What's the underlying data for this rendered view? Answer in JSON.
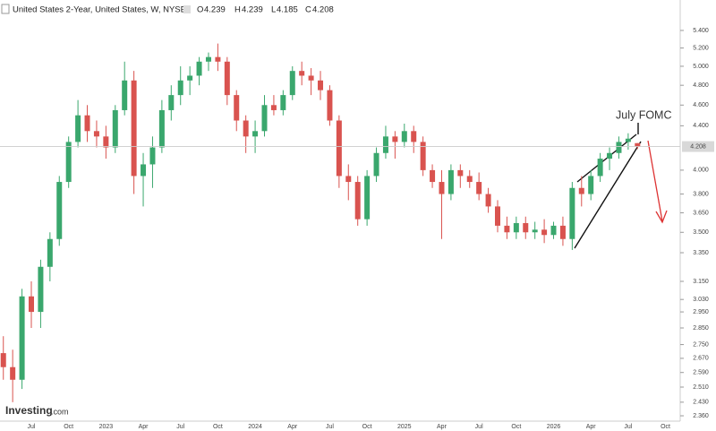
{
  "chart_data": {
    "type": "candlestick",
    "title": "United States 2-Year, United States, W, NYSE",
    "ohlc_labels": [
      "O",
      "H",
      "L",
      "C"
    ],
    "annotation": "July FOMC",
    "watermark": [
      "Investing",
      ".com"
    ],
    "up_color": "#3aa76d",
    "down_color": "#d9534f",
    "log_scale": true,
    "grid": false,
    "categories": [
      null,
      null,
      null,
      "Jul",
      null,
      null,
      null,
      "Oct",
      null,
      null,
      null,
      "2023",
      null,
      null,
      null,
      "Apr",
      null,
      null,
      null,
      "Jul",
      null,
      null,
      null,
      "Oct",
      null,
      null,
      null,
      "2024",
      null,
      null,
      null,
      "Apr",
      null,
      null,
      null,
      "Jul",
      null,
      null,
      null,
      "Oct",
      null,
      null,
      null,
      "2025",
      null,
      null,
      null,
      "Apr",
      null,
      null,
      null,
      "Jul",
      null,
      null,
      null,
      "Oct",
      null,
      null,
      null,
      "2026",
      null,
      null,
      null,
      "Apr",
      null,
      null,
      null,
      "Jul",
      null,
      null,
      null,
      "Oct",
      null
    ],
    "open": [
      2.7,
      2.62,
      2.55,
      3.05,
      2.95,
      3.25,
      3.45,
      3.9,
      4.25,
      4.5,
      4.35,
      4.3,
      4.2,
      4.55,
      4.85,
      3.95,
      4.05,
      4.2,
      4.55,
      4.7,
      4.85,
      4.9,
      5.05,
      5.1,
      5.05,
      4.7,
      4.45,
      4.3,
      4.35,
      4.6,
      4.55,
      4.7,
      4.95,
      4.9,
      4.85,
      4.75,
      4.45,
      3.95,
      3.9,
      3.6,
      3.95,
      4.15,
      4.3,
      4.25,
      4.35,
      4.25,
      4.0,
      3.9,
      3.8,
      4.0,
      3.95,
      3.9,
      3.8,
      3.7,
      3.55,
      3.5,
      3.57,
      3.5,
      3.52,
      3.48,
      3.55,
      3.45,
      3.85,
      3.8,
      3.95,
      4.1,
      4.15,
      4.25,
      4.239,
      null,
      null,
      null,
      null
    ],
    "high": [
      2.8,
      2.72,
      3.1,
      3.15,
      3.3,
      3.5,
      3.95,
      4.3,
      4.65,
      4.6,
      4.45,
      4.4,
      4.6,
      5.05,
      4.95,
      4.15,
      4.3,
      4.65,
      4.8,
      5.0,
      5.0,
      5.1,
      5.15,
      5.25,
      5.1,
      4.75,
      4.5,
      4.45,
      4.7,
      4.7,
      4.75,
      5.0,
      5.05,
      4.98,
      4.95,
      4.8,
      4.5,
      4.05,
      3.95,
      4.0,
      4.2,
      4.4,
      4.35,
      4.42,
      4.4,
      4.3,
      4.05,
      4.0,
      4.05,
      4.05,
      4.0,
      3.98,
      3.85,
      3.75,
      3.62,
      3.62,
      3.62,
      3.58,
      3.6,
      3.58,
      3.62,
      3.9,
      3.95,
      4.0,
      4.15,
      4.2,
      4.3,
      4.33,
      4.239,
      null,
      null,
      null,
      null
    ],
    "low": [
      2.55,
      2.43,
      2.5,
      2.85,
      2.85,
      3.15,
      3.4,
      3.85,
      4.2,
      4.25,
      4.2,
      4.1,
      4.15,
      4.5,
      3.8,
      3.7,
      3.85,
      4.15,
      4.45,
      4.6,
      4.7,
      4.8,
      4.95,
      4.95,
      4.6,
      4.35,
      4.15,
      4.15,
      4.3,
      4.5,
      4.5,
      4.65,
      4.8,
      4.7,
      4.65,
      4.4,
      3.85,
      3.75,
      3.55,
      3.55,
      3.9,
      4.1,
      4.1,
      4.2,
      4.15,
      3.95,
      3.85,
      3.45,
      3.75,
      3.85,
      3.85,
      3.75,
      3.65,
      3.5,
      3.45,
      3.45,
      3.45,
      3.45,
      3.42,
      3.45,
      3.4,
      3.37,
      3.7,
      3.75,
      3.9,
      4.0,
      4.1,
      4.18,
      4.185,
      null,
      null,
      null,
      null
    ],
    "close": [
      2.62,
      2.55,
      3.05,
      2.95,
      3.25,
      3.45,
      3.9,
      4.25,
      4.5,
      4.35,
      4.3,
      4.2,
      4.55,
      4.85,
      3.95,
      4.05,
      4.2,
      4.55,
      4.7,
      4.85,
      4.9,
      5.05,
      5.1,
      5.05,
      4.7,
      4.45,
      4.3,
      4.35,
      4.6,
      4.55,
      4.7,
      4.95,
      4.9,
      4.85,
      4.75,
      4.45,
      3.95,
      3.9,
      3.6,
      3.95,
      4.15,
      4.3,
      4.25,
      4.35,
      4.25,
      4.0,
      3.9,
      3.8,
      4.0,
      3.95,
      3.9,
      3.8,
      3.7,
      3.55,
      3.5,
      3.57,
      3.5,
      3.52,
      3.48,
      3.55,
      3.45,
      3.85,
      3.8,
      3.95,
      4.1,
      4.15,
      4.25,
      4.28,
      4.208,
      null,
      null,
      null,
      null
    ],
    "ylim": [
      2.333,
      5.655
    ],
    "yticks": [
      {
        "value": 5.4,
        "label": "5.400"
      },
      {
        "value": 5.2,
        "label": "5.200"
      },
      {
        "value": 5.0,
        "label": "5.000"
      },
      {
        "value": 4.8,
        "label": "4.800"
      },
      {
        "value": 4.6,
        "label": "4.600"
      },
      {
        "value": 4.4,
        "label": "4.400"
      },
      {
        "value": 4.0,
        "label": "4.000"
      },
      {
        "value": 3.8,
        "label": "3.800"
      },
      {
        "value": 3.65,
        "label": "3.650"
      },
      {
        "value": 3.5,
        "label": "3.500"
      },
      {
        "value": 3.35,
        "label": "3.350"
      },
      {
        "value": 3.15,
        "label": "3.150"
      },
      {
        "value": 3.03,
        "label": "3.030"
      },
      {
        "value": 2.95,
        "label": "2.950"
      },
      {
        "value": 2.85,
        "label": "2.850"
      },
      {
        "value": 2.75,
        "label": "2.750"
      },
      {
        "value": 2.67,
        "label": "2.670"
      },
      {
        "value": 2.59,
        "label": "2.590"
      },
      {
        "value": 2.51,
        "label": "2.510"
      },
      {
        "value": 2.43,
        "label": "2.430"
      },
      {
        "value": 2.36,
        "label": "2.360"
      }
    ]
  }
}
